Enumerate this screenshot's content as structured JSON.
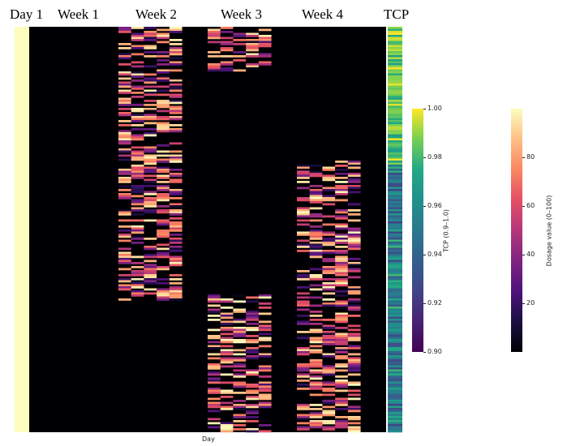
{
  "chart_data": {
    "type": "heatmap",
    "xlabel": "Day",
    "column_groups": [
      "Day 1",
      "Week 1",
      "Week 2",
      "Week 3",
      "Week 4",
      "TCP"
    ],
    "dosage_colorbar": {
      "label": "Dosage value (0–100)",
      "range": [
        0,
        100
      ],
      "ticks": [
        20,
        40,
        60,
        80
      ],
      "colormap": "magma"
    },
    "tcp_colorbar": {
      "label": "TCP (0.9–1.0)",
      "range": [
        0.9,
        1.0
      ],
      "ticks": [
        "0.90",
        "0.92",
        "0.94",
        "0.96",
        "0.98",
        "1.00"
      ],
      "colormap": "viridis"
    },
    "day1_dose": 100,
    "rows": 200,
    "patient_blocks": [
      {
        "rows": [
          0,
          22
        ],
        "weeks": [
          3
        ],
        "tcp_high": true
      },
      {
        "rows": [
          0,
          67
        ],
        "weeks": [
          2
        ],
        "tcp_high": true
      },
      {
        "rows": [
          67,
          135
        ],
        "weeks": [
          2
        ],
        "tcp_high": false
      },
      {
        "rows": [
          66,
          200
        ],
        "weeks": [
          4
        ],
        "tcp_high": false
      },
      {
        "rows": [
          132,
          200
        ],
        "weeks": [
          3
        ],
        "tcp_high": false
      }
    ]
  }
}
